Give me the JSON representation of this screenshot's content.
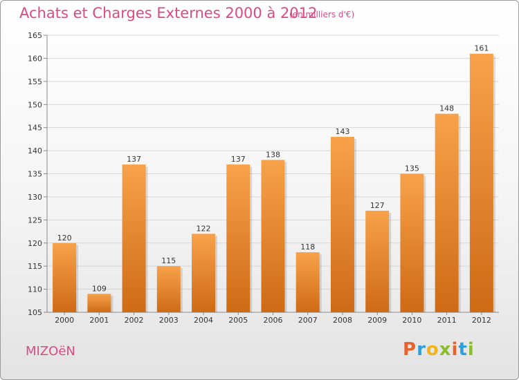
{
  "header": {
    "title": "Achats et Charges Externes 2000 à 2012",
    "unit_note": "(en milliers d'€)"
  },
  "footer": {
    "commune": "MIZOëN",
    "brand": "Proxiti",
    "brand_colors": [
      "#e8622a",
      "#2f9fd8",
      "#f2b517",
      "#8bbd2e",
      "#e8622a",
      "#2f9fd8",
      "#8bbd2e"
    ]
  },
  "colors": {
    "bar_light": "#f7a24a",
    "bar_dark": "#cf6a15",
    "text_pink": "#d94a85"
  },
  "chart_data": {
    "type": "bar",
    "title": "Achats et Charges Externes 2000 à 2012",
    "xlabel": "",
    "ylabel": "",
    "categories": [
      "2000",
      "2001",
      "2002",
      "2003",
      "2004",
      "2005",
      "2006",
      "2007",
      "2008",
      "2009",
      "2010",
      "2011",
      "2012"
    ],
    "values": [
      120,
      109,
      137,
      115,
      122,
      137,
      138,
      118,
      143,
      127,
      135,
      148,
      161
    ],
    "ylim": [
      105,
      165
    ],
    "yticks": [
      105,
      110,
      115,
      120,
      125,
      130,
      135,
      140,
      145,
      150,
      155,
      160,
      165
    ],
    "grid": true,
    "data_labels": true
  }
}
